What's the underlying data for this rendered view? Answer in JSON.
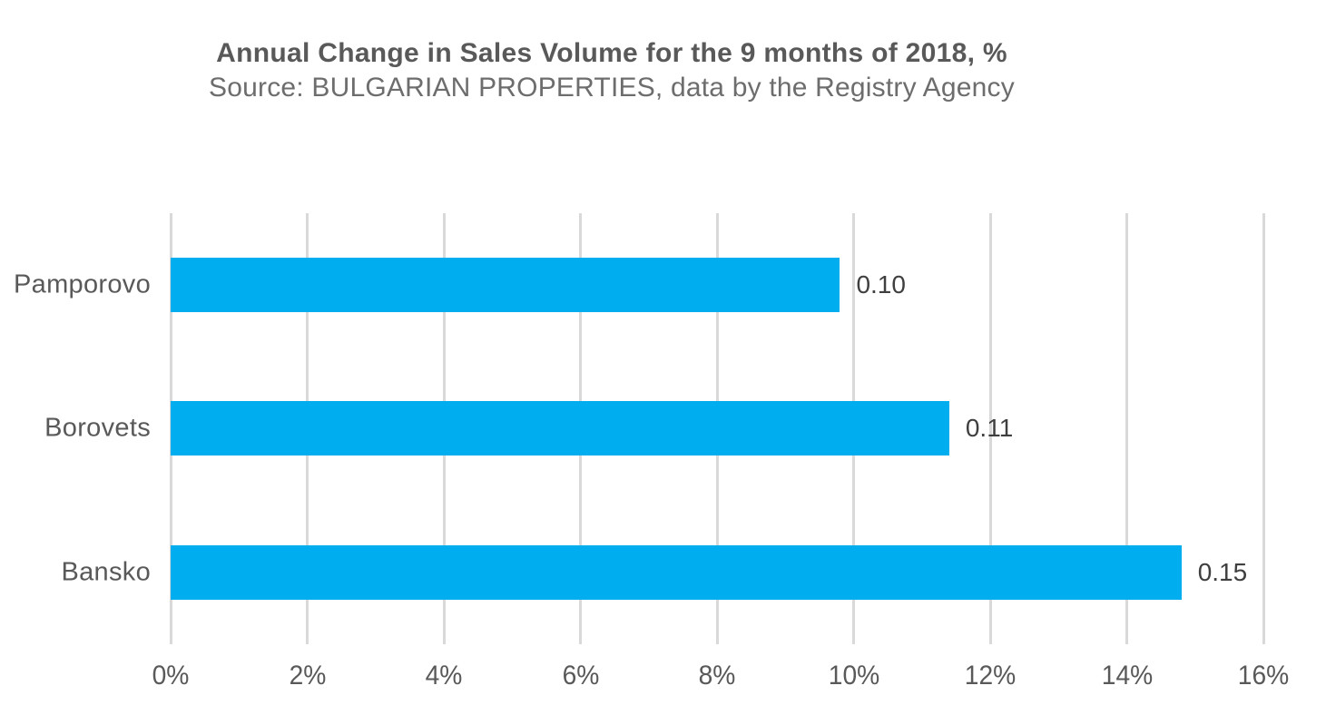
{
  "chart_data": {
    "type": "bar",
    "orientation": "horizontal",
    "title": "Annual Change in Sales Volume for the 9 months of 2018, %",
    "subtitle": "Source: BULGARIAN PROPERTIES, data by the Registry Agency",
    "categories": [
      "Pamporovo",
      "Borovets",
      "Bansko"
    ],
    "values": [
      9.8,
      11.4,
      14.8
    ],
    "value_labels": [
      "0.10",
      "0.11",
      "0.15"
    ],
    "xlabel": "",
    "ylabel": "",
    "xlim": [
      0,
      16
    ],
    "tick_step_pct": 2,
    "tick_labels": [
      "0%",
      "2%",
      "4%",
      "6%",
      "8%",
      "10%",
      "12%",
      "14%",
      "16%"
    ],
    "grid": "vertical",
    "legend": "none",
    "bar_color": "#00aeef",
    "gridline_color": "#d9d9d9",
    "title_color": "#595959",
    "label_color": "#3f3f3f"
  }
}
